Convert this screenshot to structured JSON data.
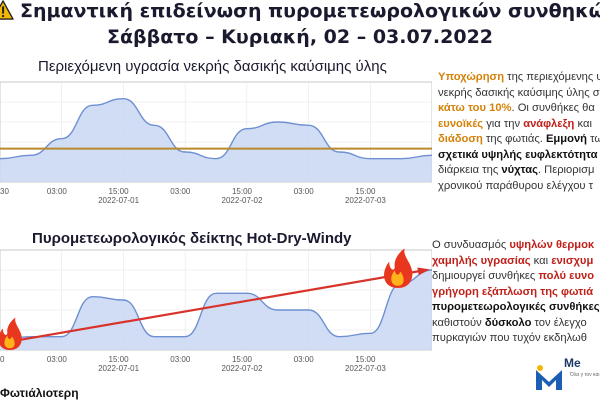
{
  "header": {
    "title_line1": "Σημαντική επιδείνωση πυρομετεωρολογικών συνθηκών",
    "title_line2": "Σάββατο – Κυριακή, 02 – 03.07.2022"
  },
  "colors": {
    "fill": "#c9d7f2",
    "stroke": "#6e8fd1",
    "threshold": "#b8892d",
    "trend": "#d9322a",
    "title": "#1a1a2e",
    "accent": "#d4820a",
    "alert": "#c0201a"
  },
  "icons": [
    "warning-icon",
    "fire-icon",
    "fire-icon",
    "meteo-logo-icon"
  ],
  "chart_data": [
    {
      "type": "area",
      "title": "Περιεχόμενη υγρασία νεκρής δασικής καύσιμης ύλης",
      "x_tick_labels": [
        "03:00",
        "15:00\n2022-07-01",
        "03:00",
        "15:00\n2022-07-02",
        "03:00",
        "15:00\n2022-07-03"
      ],
      "x_tick_labels_partial": [
        "30"
      ],
      "threshold": 10,
      "ylim": [
        0,
        30
      ],
      "x": [
        0,
        6,
        12,
        18,
        24,
        30,
        36,
        42,
        48,
        54,
        60,
        66,
        72,
        78,
        84
      ],
      "values": [
        7,
        8,
        13,
        23,
        25,
        17,
        9,
        7,
        16,
        18,
        17,
        9,
        7,
        7,
        8
      ],
      "grid": true
    },
    {
      "type": "area",
      "title": "Πυρομετεωρολογικός δείκτης Hot-Dry-Windy",
      "x_tick_labels": [
        "03:00",
        "15:00\n2022-07-01",
        "03:00",
        "15:00\n2022-07-02",
        "03:00",
        "15:00\n2022-07-03"
      ],
      "x_tick_labels_partial": [
        "0"
      ],
      "ylim": [
        0,
        30
      ],
      "x": [
        0,
        6,
        12,
        18,
        24,
        30,
        36,
        42,
        48,
        54,
        60,
        66,
        72,
        78,
        84
      ],
      "values": [
        3,
        4,
        4,
        16,
        15,
        4,
        4,
        17,
        17,
        12,
        12,
        4,
        5,
        20,
        24
      ],
      "trend": {
        "from": [
          0,
          2
        ],
        "to": [
          84,
          24
        ]
      },
      "grid": true
    }
  ],
  "panel1": {
    "l1a": "Υποχώρηση",
    "l1b": " της περιεχόμενης υ",
    "l2": "νεκρής δασικής καύσιμης ύλης σ",
    "l3a": "κάτω του 10%",
    "l3b": ". Οι συνθήκες θα",
    "l4a": "ευνοϊκές",
    "l4b": " για την ",
    "l4c": "ανάφλεξη",
    "l4d": " και",
    "l5a": "διάδοση",
    "l5b": " της φωτιάς. ",
    "l5c": "Εμμονή",
    "l5d": " τω",
    "l6": "σχετικά υψηλής ευφλεκτότητα",
    "l7a": "διάρκεια της ",
    "l7b": "νύχτας",
    "l7c": ". Περιορισμ",
    "l8": "χρονικού παράθυρου ελέγχου τ"
  },
  "panel2": {
    "l1a": "Ο συνδυασμός ",
    "l1b": "υψηλών θερμοκ",
    "l2a": "χαμηλής υγρασίας",
    "l2b": " και ",
    "l2c": "ενισχυμ",
    "l3a": "δημιουργεί συνθήκες ",
    "l3b": "πολύ ευνο",
    "l4": "γρήγορη εξάπλωση της φωτιά",
    "l5": "πυρομετεωρολογικές συνθήκες",
    "l6a": "καθιστούν ",
    "l6b": "δύσκολο",
    "l6c": " τον έλεγχο",
    "l7": "πυρκαγιών που τυχόν εκδηλωθ"
  },
  "footer": {
    "text": "Φωτιάλιοτερη"
  },
  "logo": {
    "wordmark": "Me",
    "tagline": "Όλα γ\nτον και"
  }
}
